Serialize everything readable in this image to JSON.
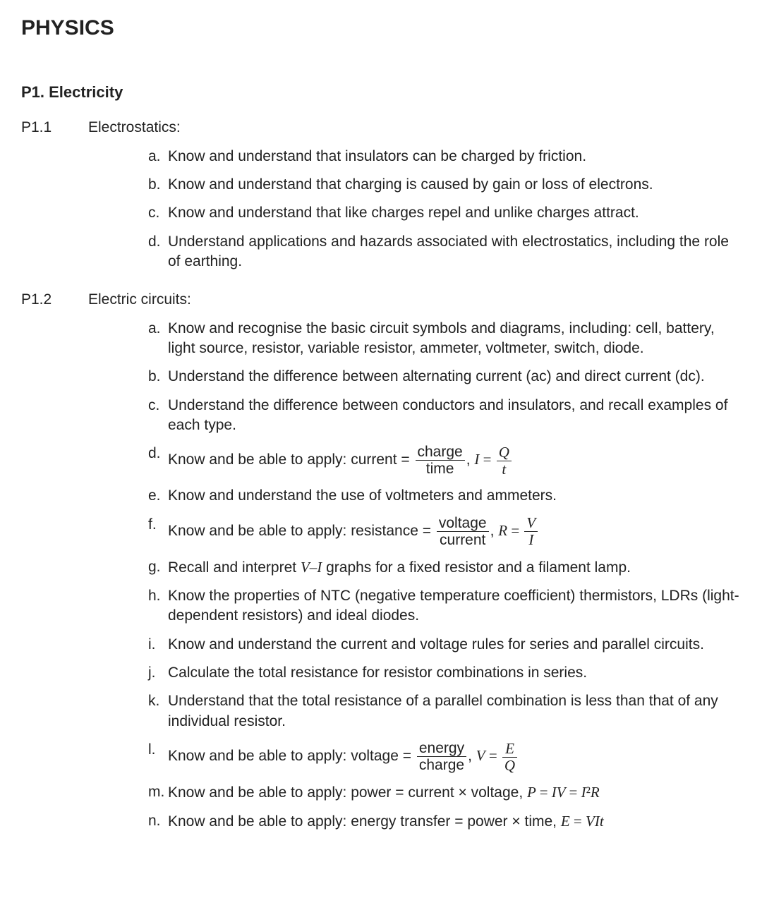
{
  "title": "PHYSICS",
  "section": {
    "label": "P1. Electricity"
  },
  "subs": [
    {
      "label": "P1.1",
      "title": "Electrostatics:",
      "items": [
        {
          "letter": "a.",
          "text": "Know and understand that insulators can be charged by friction."
        },
        {
          "letter": "b.",
          "text": "Know and understand that charging is caused by gain or loss of electrons."
        },
        {
          "letter": "c.",
          "text": "Know and understand that like charges repel and unlike charges attract."
        },
        {
          "letter": "d.",
          "text": "Understand applications and hazards associated with electrostatics, including the role of earthing."
        }
      ]
    },
    {
      "label": "P1.2",
      "title": "Electric circuits:",
      "items": [
        {
          "letter": "a.",
          "text": "Know and recognise the basic circuit symbols and diagrams, including: cell, battery, light source, resistor, variable resistor, ammeter, voltmeter, switch, diode."
        },
        {
          "letter": "b.",
          "text": "Understand the difference between alternating current (ac) and direct current (dc)."
        },
        {
          "letter": "c.",
          "text": "Understand the difference between conductors and insulators, and recall examples of each type."
        },
        {
          "letter": "d.",
          "pre": "Know and be able to apply:  current =",
          "frac1": {
            "num": "charge",
            "den": "time"
          },
          "mid": ",  ",
          "lhs2": "I",
          "eq2": " = ",
          "frac2": {
            "num": "Q",
            "den": "t"
          }
        },
        {
          "letter": "e.",
          "text": "Know and understand the use of voltmeters and ammeters."
        },
        {
          "letter": "f.",
          "pre": "Know and be able to apply:  resistance =",
          "frac1": {
            "num": "voltage",
            "den": "current"
          },
          "mid": ",  ",
          "lhs2": "R",
          "eq2": " = ",
          "frac2": {
            "num": "V",
            "den": "I"
          }
        },
        {
          "letter": "g.",
          "html": "Recall and interpret <span class=\"eq\">V–I</span> graphs for a fixed resistor and a filament lamp."
        },
        {
          "letter": "h.",
          "text": "Know the properties of NTC (negative temperature coefficient) thermistors, LDRs (light-dependent resistors) and ideal diodes."
        },
        {
          "letter": "i.",
          "text": "Know and understand the current and voltage rules for series and parallel circuits."
        },
        {
          "letter": "j.",
          "text": "Calculate the total resistance for resistor combinations in series."
        },
        {
          "letter": "k.",
          "text": "Understand that the total resistance of a parallel combination is less than that of any individual resistor."
        },
        {
          "letter": "l.",
          "pre": "Know and be able to apply:  voltage =",
          "frac1": {
            "num": "energy",
            "den": "charge"
          },
          "mid": ", ",
          "lhs2": "V",
          "eq2": " = ",
          "frac2": {
            "num": "E",
            "den": "Q"
          }
        },
        {
          "letter": "m.",
          "html": "Know and be able to apply:  power  =  current × voltage,  <span class=\"eq nowrap\">P <span class=\"up\">=</span> IV <span class=\"up\">=</span> I<span class=\"up\">²</span>R</span>"
        },
        {
          "letter": "n.",
          "html": "Know and be able to apply:  energy transfer = power × time,  <span class=\"eq nowrap\">E <span class=\"up\">=</span> VIt</span>"
        }
      ]
    }
  ]
}
